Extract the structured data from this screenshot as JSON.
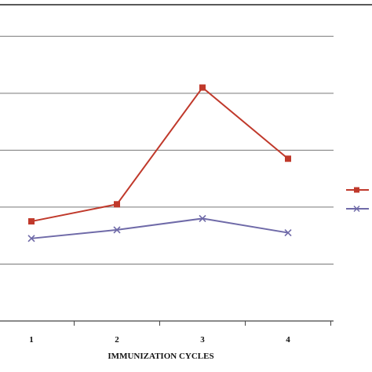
{
  "chart_data": {
    "type": "line",
    "title": "",
    "xlabel": "IMMUNIZATION CYCLES",
    "ylabel": "",
    "categories": [
      "1",
      "2",
      "3",
      "4"
    ],
    "ylim": [
      0,
      5.5
    ],
    "y_gridlines": [
      1,
      2,
      3,
      4,
      5
    ],
    "grid": true,
    "legend": "right",
    "series": [
      {
        "name": "",
        "color": "#c0392b",
        "marker": "square",
        "values": [
          1.75,
          2.05,
          4.1,
          2.85
        ]
      },
      {
        "name": "",
        "color": "#6f6aa8",
        "marker": "x",
        "values": [
          1.45,
          1.6,
          1.8,
          1.55
        ]
      }
    ]
  }
}
